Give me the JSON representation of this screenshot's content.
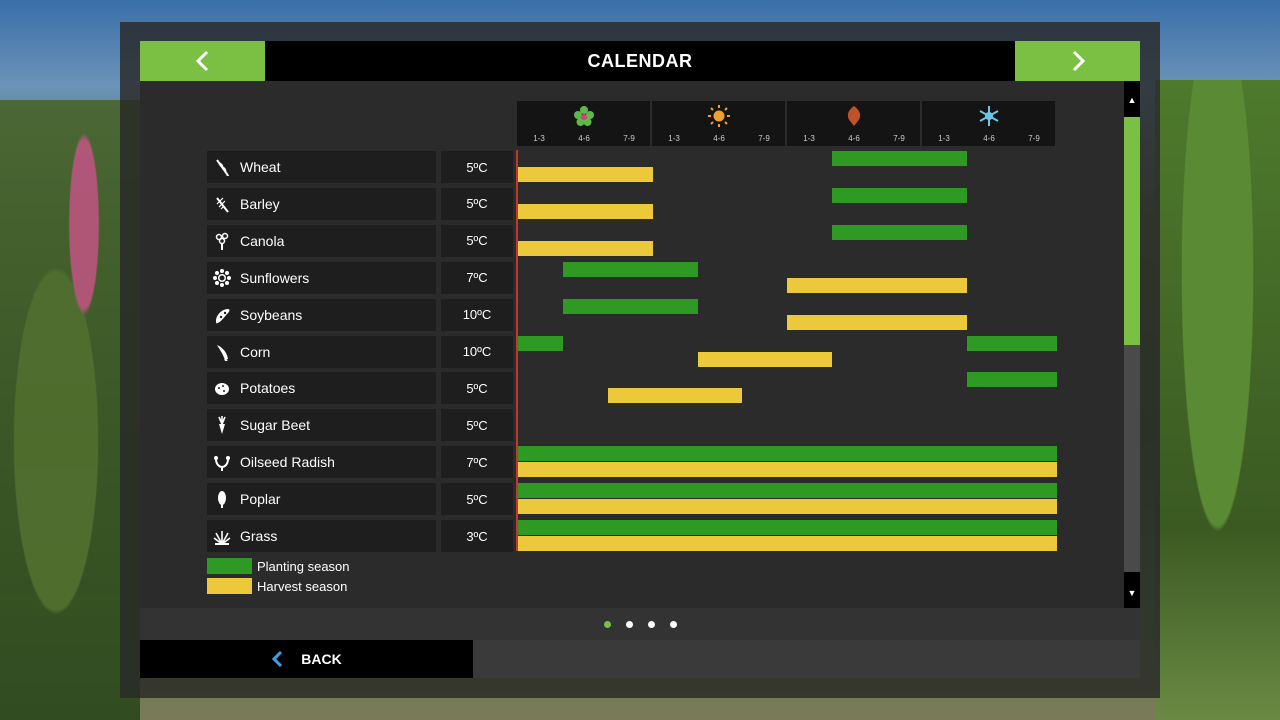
{
  "header": {
    "title": "CALENDAR",
    "prev_icon": "chevron-left-icon",
    "next_icon": "chevron-right-icon"
  },
  "seasons": [
    {
      "name": "spring",
      "icon": "blossom-icon",
      "color": "#5fb84a",
      "months": [
        "1-3",
        "4-6",
        "7-9"
      ]
    },
    {
      "name": "summer",
      "icon": "sun-icon",
      "color": "#f0a030",
      "months": [
        "1-3",
        "4-6",
        "7-9"
      ]
    },
    {
      "name": "autumn",
      "icon": "leaf-icon",
      "color": "#c0522a",
      "months": [
        "1-3",
        "4-6",
        "7-9"
      ]
    },
    {
      "name": "winter",
      "icon": "snowflake-icon",
      "color": "#6cc6e8",
      "months": [
        "1-3",
        "4-6",
        "7-9"
      ]
    }
  ],
  "crops": [
    {
      "name": "Wheat",
      "temp": "5ºC",
      "icon": "wheat-icon",
      "planting": [
        [
          7,
          10
        ]
      ],
      "harvest": [
        [
          0,
          3
        ]
      ]
    },
    {
      "name": "Barley",
      "temp": "5ºC",
      "icon": "barley-icon",
      "planting": [
        [
          7,
          10
        ]
      ],
      "harvest": [
        [
          0,
          3
        ]
      ]
    },
    {
      "name": "Canola",
      "temp": "5ºC",
      "icon": "canola-icon",
      "planting": [
        [
          7,
          10
        ]
      ],
      "harvest": [
        [
          0,
          3
        ]
      ]
    },
    {
      "name": "Sunflowers",
      "temp": "7ºC",
      "icon": "sunflower-icon",
      "planting": [
        [
          1,
          4
        ]
      ],
      "harvest": [
        [
          6,
          10
        ]
      ]
    },
    {
      "name": "Soybeans",
      "temp": "10ºC",
      "icon": "soybean-icon",
      "planting": [
        [
          1,
          4
        ]
      ],
      "harvest": [
        [
          6,
          10
        ]
      ]
    },
    {
      "name": "Corn",
      "temp": "10ºC",
      "icon": "corn-icon",
      "planting": [
        [
          0,
          1
        ],
        [
          10,
          12
        ]
      ],
      "harvest": [
        [
          4,
          7
        ]
      ]
    },
    {
      "name": "Potatoes",
      "temp": "5ºC",
      "icon": "potato-icon",
      "planting": [
        [
          10,
          12
        ]
      ],
      "harvest": [
        [
          2,
          5
        ]
      ]
    },
    {
      "name": "Sugar Beet",
      "temp": "5ºC",
      "icon": "sugar-beet-icon",
      "planting": [],
      "harvest": []
    },
    {
      "name": "Oilseed Radish",
      "temp": "7ºC",
      "icon": "oilseed-radish-icon",
      "planting": [
        [
          0,
          12
        ]
      ],
      "harvest": [
        [
          0,
          12
        ]
      ]
    },
    {
      "name": "Poplar",
      "temp": "5ºC",
      "icon": "poplar-icon",
      "planting": [
        [
          0,
          12
        ]
      ],
      "harvest": [
        [
          0,
          12
        ]
      ]
    },
    {
      "name": "Grass",
      "temp": "3ºC",
      "icon": "grass-icon",
      "planting": [
        [
          0,
          12
        ]
      ],
      "harvest": [
        [
          0,
          12
        ]
      ]
    }
  ],
  "legend": {
    "planting": {
      "label": "Planting season",
      "color": "#2e9a24"
    },
    "harvest": {
      "label": "Harvest season",
      "color": "#ecc93a"
    }
  },
  "scrollbar": {
    "thumb_fraction": 0.5
  },
  "pager": {
    "count": 4,
    "active": 0
  },
  "footer": {
    "back_label": "BACK",
    "back_icon": "chevron-left-icon"
  }
}
